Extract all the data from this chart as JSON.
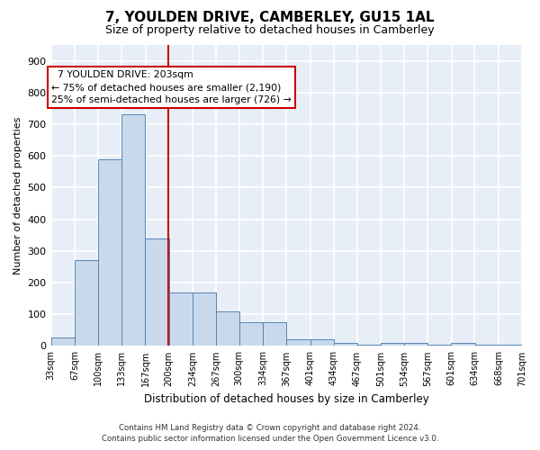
{
  "title": "7, YOULDEN DRIVE, CAMBERLEY, GU15 1AL",
  "subtitle": "Size of property relative to detached houses in Camberley",
  "xlabel": "Distribution of detached houses by size in Camberley",
  "ylabel": "Number of detached properties",
  "footnote1": "Contains HM Land Registry data © Crown copyright and database right 2024.",
  "footnote2": "Contains public sector information licensed under the Open Government Licence v3.0.",
  "annotation_line1": "  7 YOULDEN DRIVE: 203sqm",
  "annotation_line2": "← 75% of detached houses are smaller (2,190)",
  "annotation_line3": "25% of semi-detached houses are larger (726) →",
  "bar_color": "#c8d9ed",
  "bar_edge_color": "#5585b5",
  "vline_color": "#cc0000",
  "vline_x": 200,
  "background_color": "#e8eef7",
  "grid_color": "#ffffff",
  "bins": [
    33,
    67,
    100,
    133,
    167,
    200,
    234,
    267,
    300,
    334,
    367,
    401,
    434,
    467,
    501,
    534,
    567,
    601,
    634,
    668,
    701
  ],
  "values": [
    27,
    270,
    590,
    730,
    340,
    170,
    170,
    110,
    75,
    75,
    20,
    20,
    10,
    5,
    10,
    10,
    5,
    10,
    5,
    5
  ],
  "ylim": [
    0,
    950
  ],
  "yticks": [
    0,
    100,
    200,
    300,
    400,
    500,
    600,
    700,
    800,
    900
  ]
}
